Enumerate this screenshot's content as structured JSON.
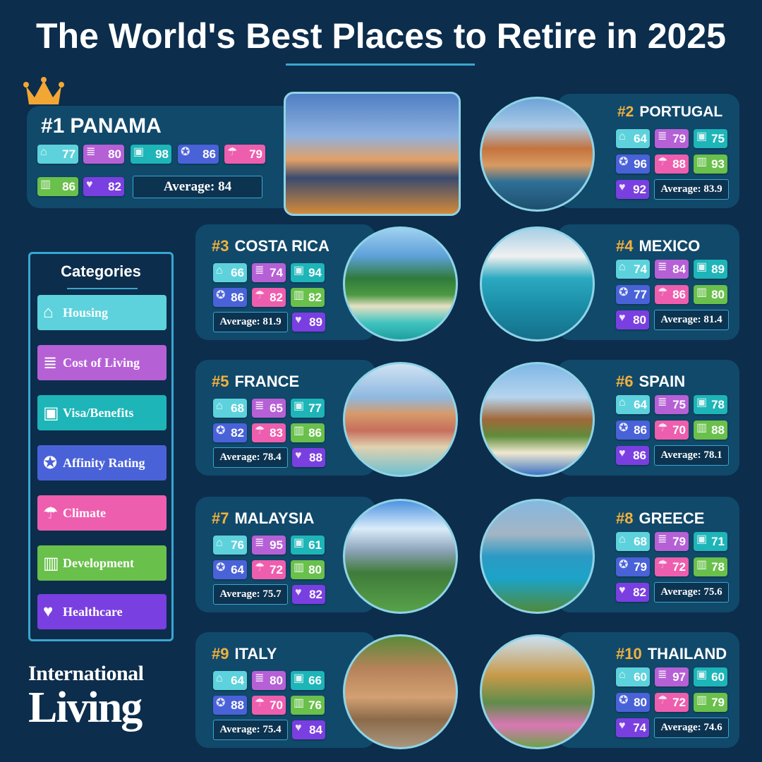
{
  "title": "The World's Best Places to Retire in 2025",
  "average_label": "Average:",
  "categories": {
    "title": "Categories",
    "items": [
      {
        "key": "housing",
        "label": "Housing",
        "icon": "house-icon",
        "glyph": "⌂",
        "color": "#5dd2dc"
      },
      {
        "key": "cost",
        "label": "Cost of Living",
        "icon": "receipt-icon",
        "glyph": "≣",
        "color": "#b660d6"
      },
      {
        "key": "visa",
        "label": "Visa/Benefits",
        "icon": "passport-icon",
        "glyph": "▣",
        "color": "#1db5b8"
      },
      {
        "key": "affinity",
        "label": "Affinity Rating",
        "icon": "award-ribbon-icon",
        "glyph": "✪",
        "color": "#4a62d8"
      },
      {
        "key": "climate",
        "label": "Climate",
        "icon": "thermometer-cloud-icon",
        "glyph": "☂",
        "color": "#ee5eae"
      },
      {
        "key": "development",
        "label": "Development",
        "icon": "buildings-icon",
        "glyph": "▥",
        "color": "#69c04b"
      },
      {
        "key": "healthcare",
        "label": "Healthcare",
        "icon": "heart-pulse-icon",
        "glyph": "♥",
        "color": "#7a3fe0"
      }
    ]
  },
  "countries": [
    {
      "rank": "#1",
      "name": "PANAMA",
      "scores": {
        "housing": 77,
        "cost": 80,
        "visa": 98,
        "affinity": 86,
        "climate": 79,
        "development": 86,
        "healthcare": 82
      },
      "average": "84"
    },
    {
      "rank": "#2",
      "name": "PORTUGAL",
      "scores": {
        "housing": 64,
        "cost": 79,
        "visa": 75,
        "affinity": 96,
        "climate": 88,
        "development": 93,
        "healthcare": 92
      },
      "average": "83.9"
    },
    {
      "rank": "#3",
      "name": "COSTA RICA",
      "scores": {
        "housing": 66,
        "cost": 74,
        "visa": 94,
        "affinity": 86,
        "climate": 82,
        "development": 82,
        "healthcare": 89
      },
      "average": "81.9"
    },
    {
      "rank": "#4",
      "name": "MEXICO",
      "scores": {
        "housing": 74,
        "cost": 84,
        "visa": 89,
        "affinity": 77,
        "climate": 86,
        "development": 80,
        "healthcare": 80
      },
      "average": "81.4"
    },
    {
      "rank": "#5",
      "name": "FRANCE",
      "scores": {
        "housing": 68,
        "cost": 65,
        "visa": 77,
        "affinity": 82,
        "climate": 83,
        "development": 86,
        "healthcare": 88
      },
      "average": "78.4"
    },
    {
      "rank": "#6",
      "name": "SPAIN",
      "scores": {
        "housing": 64,
        "cost": 75,
        "visa": 78,
        "affinity": 86,
        "climate": 70,
        "development": 88,
        "healthcare": 86
      },
      "average": "78.1"
    },
    {
      "rank": "#7",
      "name": "MALAYSIA",
      "scores": {
        "housing": 76,
        "cost": 95,
        "visa": 61,
        "affinity": 64,
        "climate": 72,
        "development": 80,
        "healthcare": 82
      },
      "average": "75.7"
    },
    {
      "rank": "#8",
      "name": "GREECE",
      "scores": {
        "housing": 68,
        "cost": 79,
        "visa": 71,
        "affinity": 79,
        "climate": 72,
        "development": 78,
        "healthcare": 82
      },
      "average": "75.6"
    },
    {
      "rank": "#9",
      "name": "ITALY",
      "scores": {
        "housing": 64,
        "cost": 80,
        "visa": 66,
        "affinity": 88,
        "climate": 70,
        "development": 76,
        "healthcare": 84
      },
      "average": "75.4"
    },
    {
      "rank": "#10",
      "name": "THAILAND",
      "scores": {
        "housing": 60,
        "cost": 97,
        "visa": 60,
        "affinity": 80,
        "climate": 72,
        "development": 79,
        "healthcare": 74
      },
      "average": "74.6"
    }
  ],
  "logo": {
    "line1": "International",
    "line2": "Living"
  }
}
